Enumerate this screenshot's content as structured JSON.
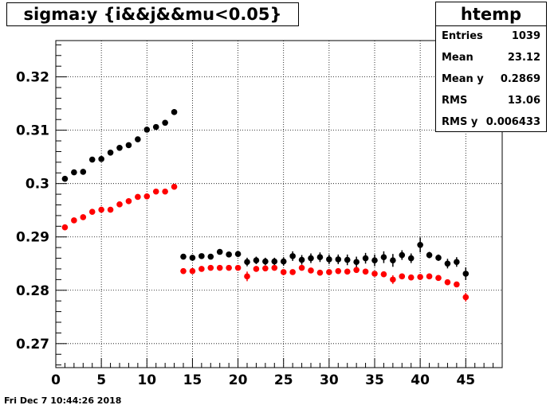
{
  "title": "sigma:y {i&&j&&mu<0.05}",
  "stats": {
    "name": "htemp",
    "rows": [
      {
        "label": "Entries",
        "value": "1039"
      },
      {
        "label": "Mean",
        "value": "23.12"
      },
      {
        "label": "Mean y",
        "value": "0.2869"
      },
      {
        "label": "RMS",
        "value": "13.06"
      },
      {
        "label": "RMS y",
        "value": "0.006433"
      }
    ]
  },
  "timestamp": "Fri Dec  7 10:44:26 2018",
  "colors": {
    "series_black": "#000000",
    "series_red": "#ff0000",
    "grid": "#000000"
  },
  "chart_data": {
    "type": "scatter",
    "title": "sigma:y {i&&j&&mu<0.05}",
    "xlabel": "",
    "ylabel": "",
    "xlim": [
      0,
      49
    ],
    "ylim": [
      0.2655,
      0.3268
    ],
    "grid": true,
    "xticks": [
      0,
      5,
      10,
      15,
      20,
      25,
      30,
      35,
      40,
      45
    ],
    "yticks": [
      0.27,
      0.28,
      0.29,
      0.3,
      0.31,
      0.32
    ],
    "ytick_labels": [
      "0.27",
      "0.28",
      "0.29",
      "0.3",
      "0.31",
      "0.32"
    ],
    "series": [
      {
        "color": "#000000",
        "x": [
          1,
          2,
          3,
          4,
          5,
          6,
          7,
          8,
          9,
          10,
          11,
          12,
          13,
          14,
          15,
          16,
          17,
          18,
          19,
          20,
          21,
          22,
          23,
          24,
          25,
          26,
          27,
          28,
          29,
          30,
          31,
          32,
          33,
          34,
          35,
          36,
          37,
          38,
          39,
          40,
          41,
          42,
          43,
          44,
          45
        ],
        "y": [
          0.3009,
          0.3021,
          0.3022,
          0.3045,
          0.3046,
          0.3058,
          0.3067,
          0.3072,
          0.3083,
          0.3101,
          0.3106,
          0.3114,
          0.3134,
          0.2863,
          0.2861,
          0.2864,
          0.2863,
          0.2872,
          0.2867,
          0.2868,
          0.2853,
          0.2856,
          0.2854,
          0.2854,
          0.2854,
          0.2864,
          0.2857,
          0.286,
          0.2862,
          0.2858,
          0.2858,
          0.2857,
          0.2853,
          0.286,
          0.2856,
          0.2862,
          0.2856,
          0.2866,
          0.286,
          0.2885,
          0.2866,
          0.2861,
          0.285,
          0.2853,
          0.2831
        ],
        "err": [
          0.0003,
          0.0003,
          0.0003,
          0.0003,
          0.0003,
          0.0003,
          0.0004,
          0.0004,
          0.0004,
          0.0004,
          0.0004,
          0.0004,
          0.0004,
          0.0004,
          0.0004,
          0.0005,
          0.0005,
          0.0005,
          0.0005,
          0.0005,
          0.0008,
          0.0007,
          0.0007,
          0.0007,
          0.0008,
          0.0009,
          0.0009,
          0.0009,
          0.0009,
          0.0009,
          0.0009,
          0.001,
          0.001,
          0.001,
          0.0011,
          0.0011,
          0.0012,
          0.0009,
          0.0009,
          0.0014,
          0.0006,
          0.0006,
          0.0009,
          0.0009,
          0.0012
        ]
      },
      {
        "color": "#ff0000",
        "x": [
          1,
          2,
          3,
          4,
          5,
          6,
          7,
          8,
          9,
          10,
          11,
          12,
          13,
          14,
          15,
          16,
          17,
          18,
          19,
          20,
          21,
          22,
          23,
          24,
          25,
          26,
          27,
          28,
          29,
          30,
          31,
          32,
          33,
          34,
          35,
          36,
          37,
          38,
          39,
          40,
          41,
          42,
          43,
          44,
          45
        ],
        "y": [
          0.2918,
          0.2931,
          0.2937,
          0.2947,
          0.2951,
          0.2951,
          0.2961,
          0.2967,
          0.2975,
          0.2976,
          0.2985,
          0.2985,
          0.2994,
          0.2836,
          0.2836,
          0.284,
          0.2842,
          0.2842,
          0.2842,
          0.2842,
          0.2826,
          0.284,
          0.2841,
          0.2842,
          0.2834,
          0.2834,
          0.2842,
          0.2837,
          0.2833,
          0.2834,
          0.2836,
          0.2835,
          0.2838,
          0.2835,
          0.2831,
          0.283,
          0.282,
          0.2826,
          0.2824,
          0.2825,
          0.2826,
          0.2823,
          0.2815,
          0.2811,
          0.2787
        ],
        "err": [
          0.0003,
          0.0003,
          0.0003,
          0.0003,
          0.0003,
          0.0003,
          0.0003,
          0.0003,
          0.0003,
          0.0003,
          0.0003,
          0.0003,
          0.0003,
          0.0003,
          0.0003,
          0.0003,
          0.0003,
          0.0003,
          0.0003,
          0.0003,
          0.0009,
          0.0004,
          0.0004,
          0.0004,
          0.0004,
          0.0004,
          0.0004,
          0.0004,
          0.0004,
          0.0004,
          0.0004,
          0.0004,
          0.0004,
          0.0004,
          0.0004,
          0.0005,
          0.0008,
          0.0004,
          0.0004,
          0.0004,
          0.0004,
          0.0004,
          0.0004,
          0.0004,
          0.0008
        ]
      }
    ]
  }
}
